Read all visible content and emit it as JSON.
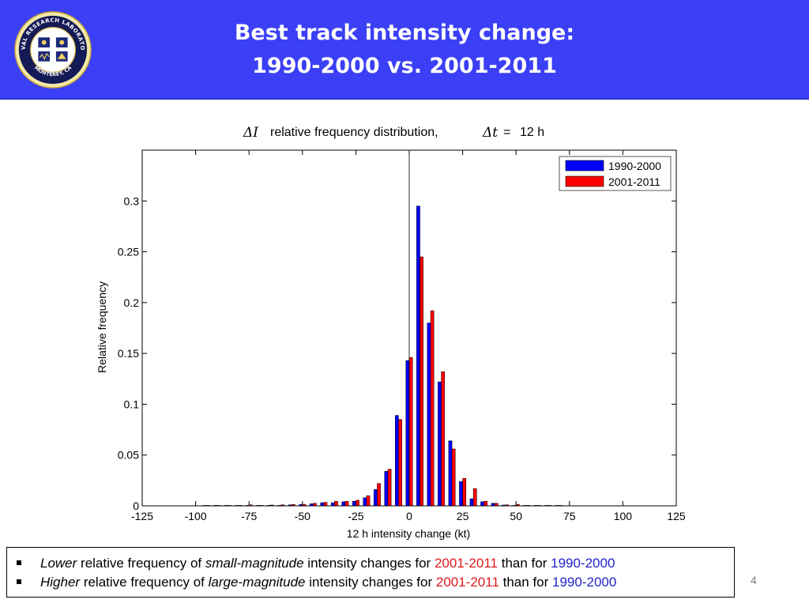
{
  "header": {
    "title_line1": "Best track intensity change:",
    "title_line2": "1990-2000 vs. 2001-2011",
    "logo": {
      "icon": "naval-research-laboratory-seal-icon",
      "text_top": "NAVAL RESEARCH LABORATORY",
      "text_bottom": "MONTEREY, CA"
    },
    "background_color": "#3b3ff5"
  },
  "chart_data": {
    "type": "bar",
    "title_delta_i": "ΔI",
    "title_middle": "relative frequency distribution,",
    "title_delta_t": "Δt",
    "title_equals": "=",
    "title_value": "12 h",
    "xlabel": "12 h intensity change (kt)",
    "ylabel": "Relative frequency",
    "xlim": [
      -125,
      125
    ],
    "ylim": [
      0,
      0.35
    ],
    "xticks": [
      "-125",
      "-100",
      "-75",
      "-50",
      "-25",
      "0",
      "25",
      "50",
      "75",
      "100",
      "125"
    ],
    "yticks": [
      "0",
      "0.05",
      "0.1",
      "0.15",
      "0.2",
      "0.25",
      "0.3"
    ],
    "x": [
      -95,
      -90,
      -85,
      -80,
      -75,
      -70,
      -65,
      -60,
      -55,
      -50,
      -45,
      -40,
      -35,
      -30,
      -25,
      -20,
      -15,
      -10,
      -5,
      0,
      5,
      10,
      15,
      20,
      25,
      30,
      35,
      40,
      45,
      50,
      55,
      60,
      65,
      70
    ],
    "series": [
      {
        "name": "1990-2000",
        "color": "#0000ff",
        "values": [
          0.0003,
          0.0003,
          0.0003,
          0.0003,
          0.0005,
          0.0005,
          0.0005,
          0.0005,
          0.001,
          0.0013,
          0.002,
          0.003,
          0.003,
          0.004,
          0.0045,
          0.008,
          0.016,
          0.034,
          0.089,
          0.143,
          0.295,
          0.18,
          0.122,
          0.064,
          0.024,
          0.007,
          0.004,
          0.0025,
          0.0008,
          0.0005,
          0.0003,
          0.0003,
          0.0003,
          0.0003
        ]
      },
      {
        "name": "2001-2011",
        "color": "#ff0000",
        "values": [
          0.0003,
          0.0003,
          0.0003,
          0.0005,
          0.001,
          0.0005,
          0.0008,
          0.001,
          0.0013,
          0.0015,
          0.0025,
          0.0035,
          0.0045,
          0.0045,
          0.0055,
          0.01,
          0.022,
          0.036,
          0.085,
          0.146,
          0.245,
          0.192,
          0.132,
          0.056,
          0.027,
          0.017,
          0.0045,
          0.0025,
          0.001,
          0.0015,
          0.0003,
          0.0003,
          0.0003,
          0.0003
        ]
      }
    ],
    "legend_position": "top-right",
    "grid": false,
    "x_zero_line": true
  },
  "bullets": [
    {
      "marker": "square-bullet-icon",
      "parts": [
        {
          "text": "Lower",
          "style": "italic"
        },
        {
          "text": " relative frequency of ",
          "style": "normal"
        },
        {
          "text": "small-magnitude",
          "style": "italic"
        },
        {
          "text": " intensity changes for ",
          "style": "normal"
        },
        {
          "text": "2001-2011",
          "style": "red"
        },
        {
          "text": " than for ",
          "style": "normal"
        },
        {
          "text": "1990-2000",
          "style": "blue"
        }
      ]
    },
    {
      "marker": "square-bullet-icon",
      "parts": [
        {
          "text": "Higher",
          "style": "italic"
        },
        {
          "text": " relative frequency of ",
          "style": "normal"
        },
        {
          "text": "large-magnitude",
          "style": "italic"
        },
        {
          "text": " intensity changes for ",
          "style": "normal"
        },
        {
          "text": "2001-2011",
          "style": "red"
        },
        {
          "text": " than for ",
          "style": "normal"
        },
        {
          "text": "1990-2000",
          "style": "blue"
        }
      ]
    }
  ],
  "page_number": "4"
}
